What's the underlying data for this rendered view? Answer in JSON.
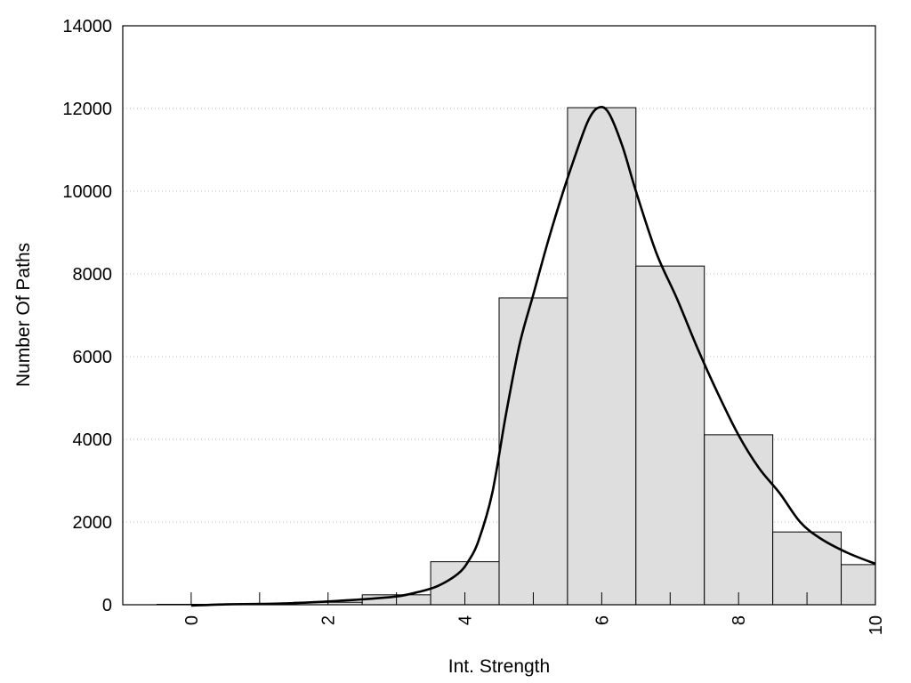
{
  "chart_data": {
    "type": "bar",
    "title": "",
    "xlabel": "Int. Strength",
    "ylabel": "Number Of Paths",
    "xlim": [
      -1,
      10
    ],
    "ylim": [
      0,
      14000
    ],
    "x_ticks": [
      "0",
      "2",
      "4",
      "6",
      "8",
      "10"
    ],
    "y_ticks": [
      "0",
      "2000",
      "4000",
      "6000",
      "8000",
      "10000",
      "12000",
      "14000"
    ],
    "grid": "horizontal dotted",
    "bar_color": "#dedede",
    "bar_edge_color": "#000000",
    "line_color": "#000000",
    "categories": [
      "0",
      "1",
      "2",
      "3",
      "4",
      "5",
      "6",
      "7",
      "8",
      "9",
      "10"
    ],
    "series": [
      {
        "type": "bar",
        "values": [
          10,
          20,
          60,
          240,
          1040,
          7420,
          12020,
          8190,
          4110,
          1760,
          970
        ]
      },
      {
        "type": "line",
        "x": [
          0,
          0.5,
          1,
          1.5,
          2,
          2.5,
          3,
          3.3,
          3.6,
          3.9,
          4.05,
          4.2,
          4.4,
          4.6,
          4.8,
          5.0,
          5.2,
          5.4,
          5.6,
          5.8,
          5.95,
          6.1,
          6.3,
          6.5,
          6.8,
          7.1,
          7.4,
          7.7,
          8.0,
          8.3,
          8.6,
          8.9,
          9.2,
          9.6,
          10.0
        ],
        "y": [
          -20,
          10,
          20,
          40,
          80,
          130,
          200,
          300,
          450,
          750,
          1050,
          1550,
          2700,
          4600,
          6300,
          7500,
          8700,
          9800,
          10800,
          11700,
          12020,
          11900,
          11100,
          10000,
          8500,
          7400,
          6200,
          5100,
          4100,
          3300,
          2700,
          2000,
          1600,
          1250,
          990
        ]
      }
    ]
  }
}
